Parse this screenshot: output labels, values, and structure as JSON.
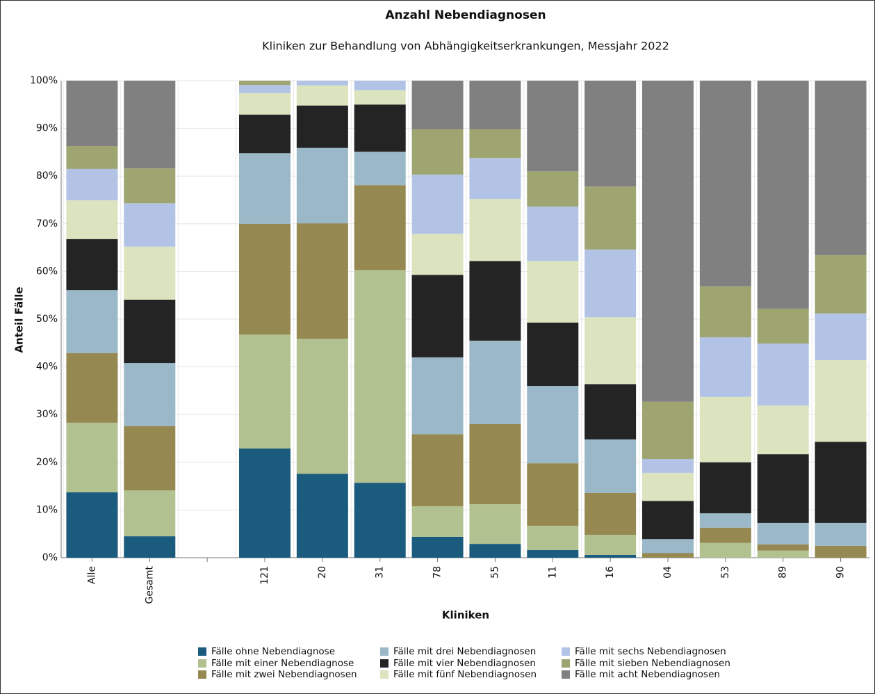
{
  "chart_data": {
    "type": "stacked_bar",
    "title": "Anzahl Nebendiagnosen",
    "subtitle": "Kliniken zur Behandlung von Abhängigkeitserkrankungen, Messjahr 2022",
    "x_label": "Kliniken",
    "y_label": "Anteil Fälle",
    "categories": [
      "Alle",
      "Gesamt",
      null,
      "121",
      "20",
      "31",
      "78",
      "55",
      "11",
      "16",
      "04",
      "53",
      "89",
      "90"
    ],
    "series": [
      {
        "name": "Fälle ohne Nebendiagnose",
        "color": "#1b5b7e",
        "values": [
          13.7,
          4.5,
          null,
          22.9,
          17.6,
          15.7,
          4.4,
          2.9,
          1.6,
          0.6,
          0,
          0,
          0,
          0
        ]
      },
      {
        "name": "Fälle mit einer Nebendiagnose",
        "color": "#b1c18f",
        "values": [
          14.6,
          9.6,
          null,
          23.9,
          28.3,
          44.6,
          6.4,
          8.3,
          5.1,
          4.2,
          0,
          3.1,
          1.5,
          0
        ]
      },
      {
        "name": "Fälle mit zwei Nebendiagnosen",
        "color": "#958850",
        "values": [
          14.6,
          13.5,
          null,
          23.2,
          24.2,
          17.8,
          15.1,
          16.8,
          13.1,
          8.8,
          1.0,
          3.2,
          1.3,
          2.5
        ]
      },
      {
        "name": "Fälle mit drei Nebendiagnosen",
        "color": "#9bb8c9",
        "values": [
          13.2,
          13.2,
          null,
          14.8,
          15.8,
          7.0,
          16.1,
          17.5,
          16.2,
          11.2,
          2.9,
          3.0,
          4.5,
          4.8
        ]
      },
      {
        "name": "Fälle mit vier Nebendiagnosen",
        "color": "#242424",
        "values": [
          10.7,
          13.3,
          null,
          8.1,
          8.9,
          9.9,
          17.3,
          16.7,
          13.3,
          11.6,
          8.0,
          10.7,
          14.4,
          17.0
        ]
      },
      {
        "name": "Fälle mit fünf Nebendiagnosen",
        "color": "#dbe4bf",
        "values": [
          8.1,
          11.1,
          null,
          4.5,
          4.2,
          3.0,
          8.6,
          13.0,
          12.9,
          14.0,
          5.9,
          13.7,
          10.2,
          17.1
        ]
      },
      {
        "name": "Fälle mit sechs Nebendiagnosen",
        "color": "#b3c3e6",
        "values": [
          6.6,
          9.1,
          null,
          1.7,
          1.0,
          2.0,
          12.4,
          8.6,
          11.4,
          14.2,
          2.9,
          12.5,
          13.0,
          9.8
        ]
      },
      {
        "name": "Fälle mit sieben Nebendiagnosen",
        "color": "#9ea571",
        "values": [
          4.8,
          7.3,
          null,
          0.9,
          0,
          0,
          9.5,
          6.0,
          7.4,
          13.2,
          12.0,
          10.7,
          7.3,
          12.2
        ]
      },
      {
        "name": "Fälle mit acht Nebendiagnosen",
        "color": "#808080",
        "values": [
          13.7,
          18.4,
          null,
          0,
          0,
          0,
          10.2,
          10.2,
          19.0,
          22.2,
          67.3,
          43.1,
          47.8,
          36.6
        ]
      }
    ],
    "ylim": [
      0,
      100
    ],
    "yticks": [
      {
        "value": 0,
        "label": "0%"
      },
      {
        "value": 10,
        "label": "10%"
      },
      {
        "value": 20,
        "label": "20%"
      },
      {
        "value": 30,
        "label": "30%"
      },
      {
        "value": 40,
        "label": "40%"
      },
      {
        "value": 50,
        "label": "50%"
      },
      {
        "value": 60,
        "label": "60%"
      },
      {
        "value": 70,
        "label": "70%"
      },
      {
        "value": 80,
        "label": "80%"
      },
      {
        "value": 90,
        "label": "90%"
      },
      {
        "value": 100,
        "label": "100%"
      }
    ],
    "grid": true
  }
}
